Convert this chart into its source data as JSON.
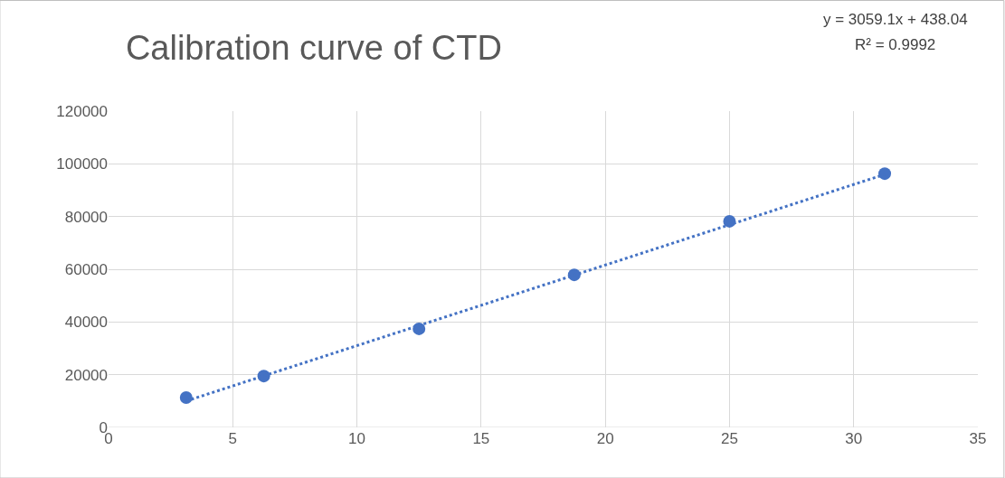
{
  "chart_data": {
    "type": "scatter",
    "title": "Calibration curve of CTD",
    "annotations": [
      "y = 3059.1x + 438.04",
      "R² = 0.9992"
    ],
    "x": [
      3.125,
      6.25,
      12.5,
      18.75,
      25,
      31.25
    ],
    "series": [
      {
        "color": "#4472c4",
        "values": [
          11300,
          19500,
          37400,
          57900,
          78200,
          96300
        ],
        "marker": "circle"
      },
      {
        "type": "line",
        "color": "#4472c4",
        "x": [
          3.125,
          31.25
        ],
        "values": [
          10000,
          96000
        ],
        "line_style": "dotted",
        "marker": "none"
      }
    ],
    "xlim": [
      0,
      35
    ],
    "xticks": [
      0,
      5,
      10,
      15,
      20,
      25,
      30,
      35
    ],
    "ylim": [
      0,
      120000
    ],
    "yticks": [
      0,
      20000,
      40000,
      60000,
      80000,
      100000,
      120000
    ],
    "grid": true
  }
}
